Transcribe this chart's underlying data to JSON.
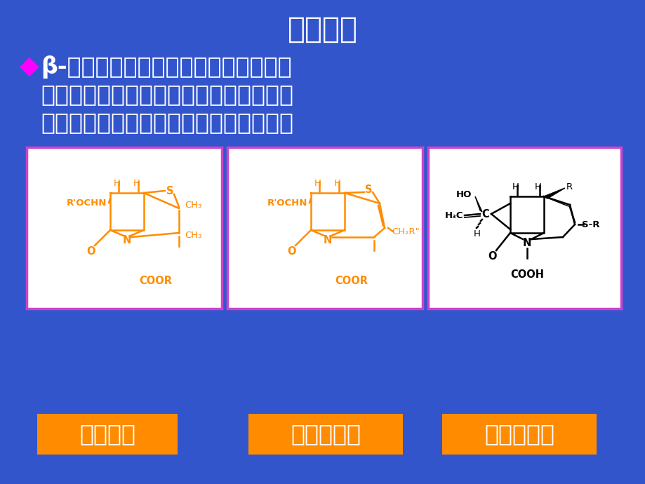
{
  "background_color": "#3355cc",
  "title": "结构分类",
  "title_color": "#ffffff",
  "title_fontsize": 30,
  "bullet_color": "#ff00ff",
  "bullet_text_line1": "β-内酰胺类药物按齺合环可分为青霆素",
  "bullet_text_line2": "（齺合五元氮化噌唑环）、头孢菌素（齺",
  "bullet_text_line3": "合六元氮化噌嚙环）及碳青霆烯类三类。",
  "text_color_white": "#ffffff",
  "text_color_orange": "#ff8c00",
  "text_fontsize": 24,
  "box_bg": "#ffffff",
  "box_border_color": "#cc44cc",
  "label_bg": "#ff8c00",
  "label_text_color": "#ffffff",
  "labels": [
    "青霆素类",
    "头孢菌素类",
    "碳青霆烯类"
  ],
  "label_fontsize": 24,
  "struct_color_orange": "#ff8c00",
  "struct_color_black": "#000000"
}
